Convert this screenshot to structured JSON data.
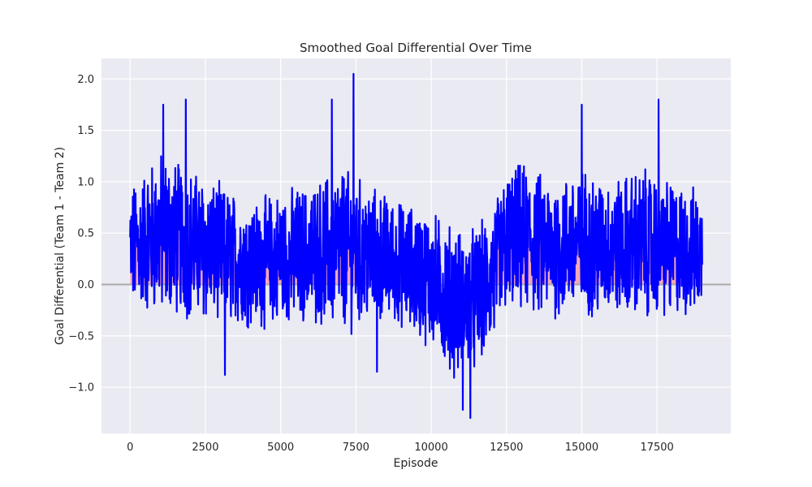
{
  "chart_data": {
    "type": "line",
    "title": "Smoothed Goal Differential Over Time",
    "xlabel": "Episode",
    "ylabel": "Goal Differential (Team 1 - Team 2)",
    "xlim": [
      -950,
      19950
    ],
    "ylim": [
      -1.45,
      2.2
    ],
    "x_ticks": [
      0,
      2500,
      5000,
      7500,
      10000,
      12500,
      15000,
      17500
    ],
    "x_tick_labels": [
      "0",
      "2500",
      "5000",
      "7500",
      "10000",
      "12500",
      "15000",
      "17500"
    ],
    "y_ticks": [
      -1.0,
      -0.5,
      0.0,
      0.5,
      1.0,
      1.5,
      2.0
    ],
    "y_tick_labels": [
      "−1.0",
      "−0.5",
      "0.0",
      "0.5",
      "1.0",
      "1.5",
      "2.0"
    ],
    "grid": true,
    "reference_line_y": 0,
    "x_start": 0,
    "x_end": 19000,
    "smoothed_trend": {
      "x": [
        0,
        1000,
        2000,
        3000,
        4000,
        5000,
        6000,
        7000,
        8000,
        9000,
        10000,
        10500,
        11000,
        11500,
        12000,
        12500,
        13000,
        14000,
        15000,
        16000,
        17000,
        18000,
        19000
      ],
      "y": [
        0.35,
        0.5,
        0.4,
        0.3,
        0.2,
        0.25,
        0.3,
        0.35,
        0.28,
        0.2,
        0.05,
        -0.1,
        -0.2,
        -0.15,
        0.05,
        0.4,
        0.45,
        0.35,
        0.4,
        0.35,
        0.4,
        0.35,
        0.3
      ]
    },
    "amplitude": {
      "x": [
        0,
        1000,
        2000,
        3000,
        4000,
        5000,
        6000,
        7000,
        8000,
        9000,
        10000,
        11000,
        12000,
        13000,
        14000,
        15000,
        16000,
        17000,
        18000,
        19000
      ],
      "y": [
        0.45,
        0.6,
        0.55,
        0.5,
        0.45,
        0.5,
        0.5,
        0.6,
        0.5,
        0.45,
        0.5,
        0.55,
        0.5,
        0.55,
        0.5,
        0.55,
        0.5,
        0.55,
        0.5,
        0.45
      ]
    },
    "peaks": [
      {
        "x": 1100,
        "y": 1.75
      },
      {
        "x": 1850,
        "y": 1.8
      },
      {
        "x": 7420,
        "y": 2.05
      },
      {
        "x": 6700,
        "y": 1.8
      },
      {
        "x": 11300,
        "y": -1.3
      },
      {
        "x": 11050,
        "y": -1.22
      },
      {
        "x": 17550,
        "y": 1.8
      },
      {
        "x": 15000,
        "y": 1.75
      },
      {
        "x": 3150,
        "y": -0.88
      },
      {
        "x": 8200,
        "y": -0.85
      }
    ],
    "colors": {
      "line": "#0000ff",
      "positive_fill": "#f4a0b0",
      "negative_fill": "#a0a0f4",
      "reference_line": "#aaaaaa",
      "plot_background": "#eaeaf2",
      "grid": "#ffffff"
    }
  }
}
